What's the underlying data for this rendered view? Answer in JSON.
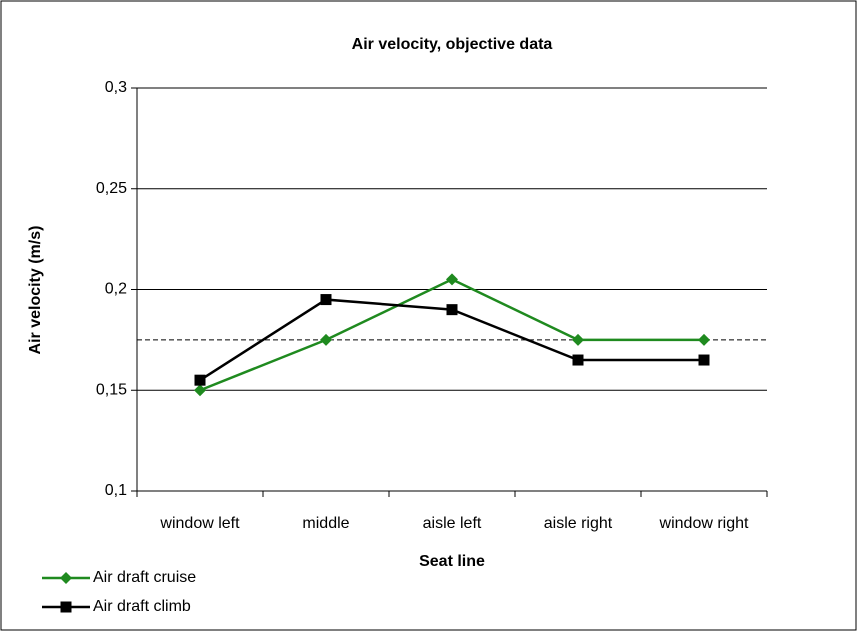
{
  "chart_data": {
    "type": "line",
    "title": "Air velocity, objective data",
    "x_label": "Seat line",
    "y_label": "Air velocity (m/s)",
    "categories": [
      "window left",
      "middle",
      "aisle left",
      "aisle right",
      "window right"
    ],
    "series": [
      {
        "name": "Air draft cruise",
        "color": "#1f8a1f",
        "marker": "diamond",
        "values": [
          0.15,
          0.175,
          0.205,
          0.175,
          0.175
        ]
      },
      {
        "name": "Air draft climb",
        "color": "#000000",
        "marker": "square",
        "values": [
          0.155,
          0.195,
          0.19,
          0.165,
          0.165
        ]
      }
    ],
    "reference_line": {
      "value": 0.175,
      "style": "dashed"
    },
    "ylim": [
      0.1,
      0.3
    ],
    "yticks": [
      {
        "value": 0.1,
        "label": "0,1"
      },
      {
        "value": 0.15,
        "label": "0,15"
      },
      {
        "value": 0.2,
        "label": "0,2"
      },
      {
        "value": 0.25,
        "label": "0,25"
      },
      {
        "value": 0.3,
        "label": "0,3"
      }
    ],
    "grid": true,
    "legend": "bottom-left"
  }
}
